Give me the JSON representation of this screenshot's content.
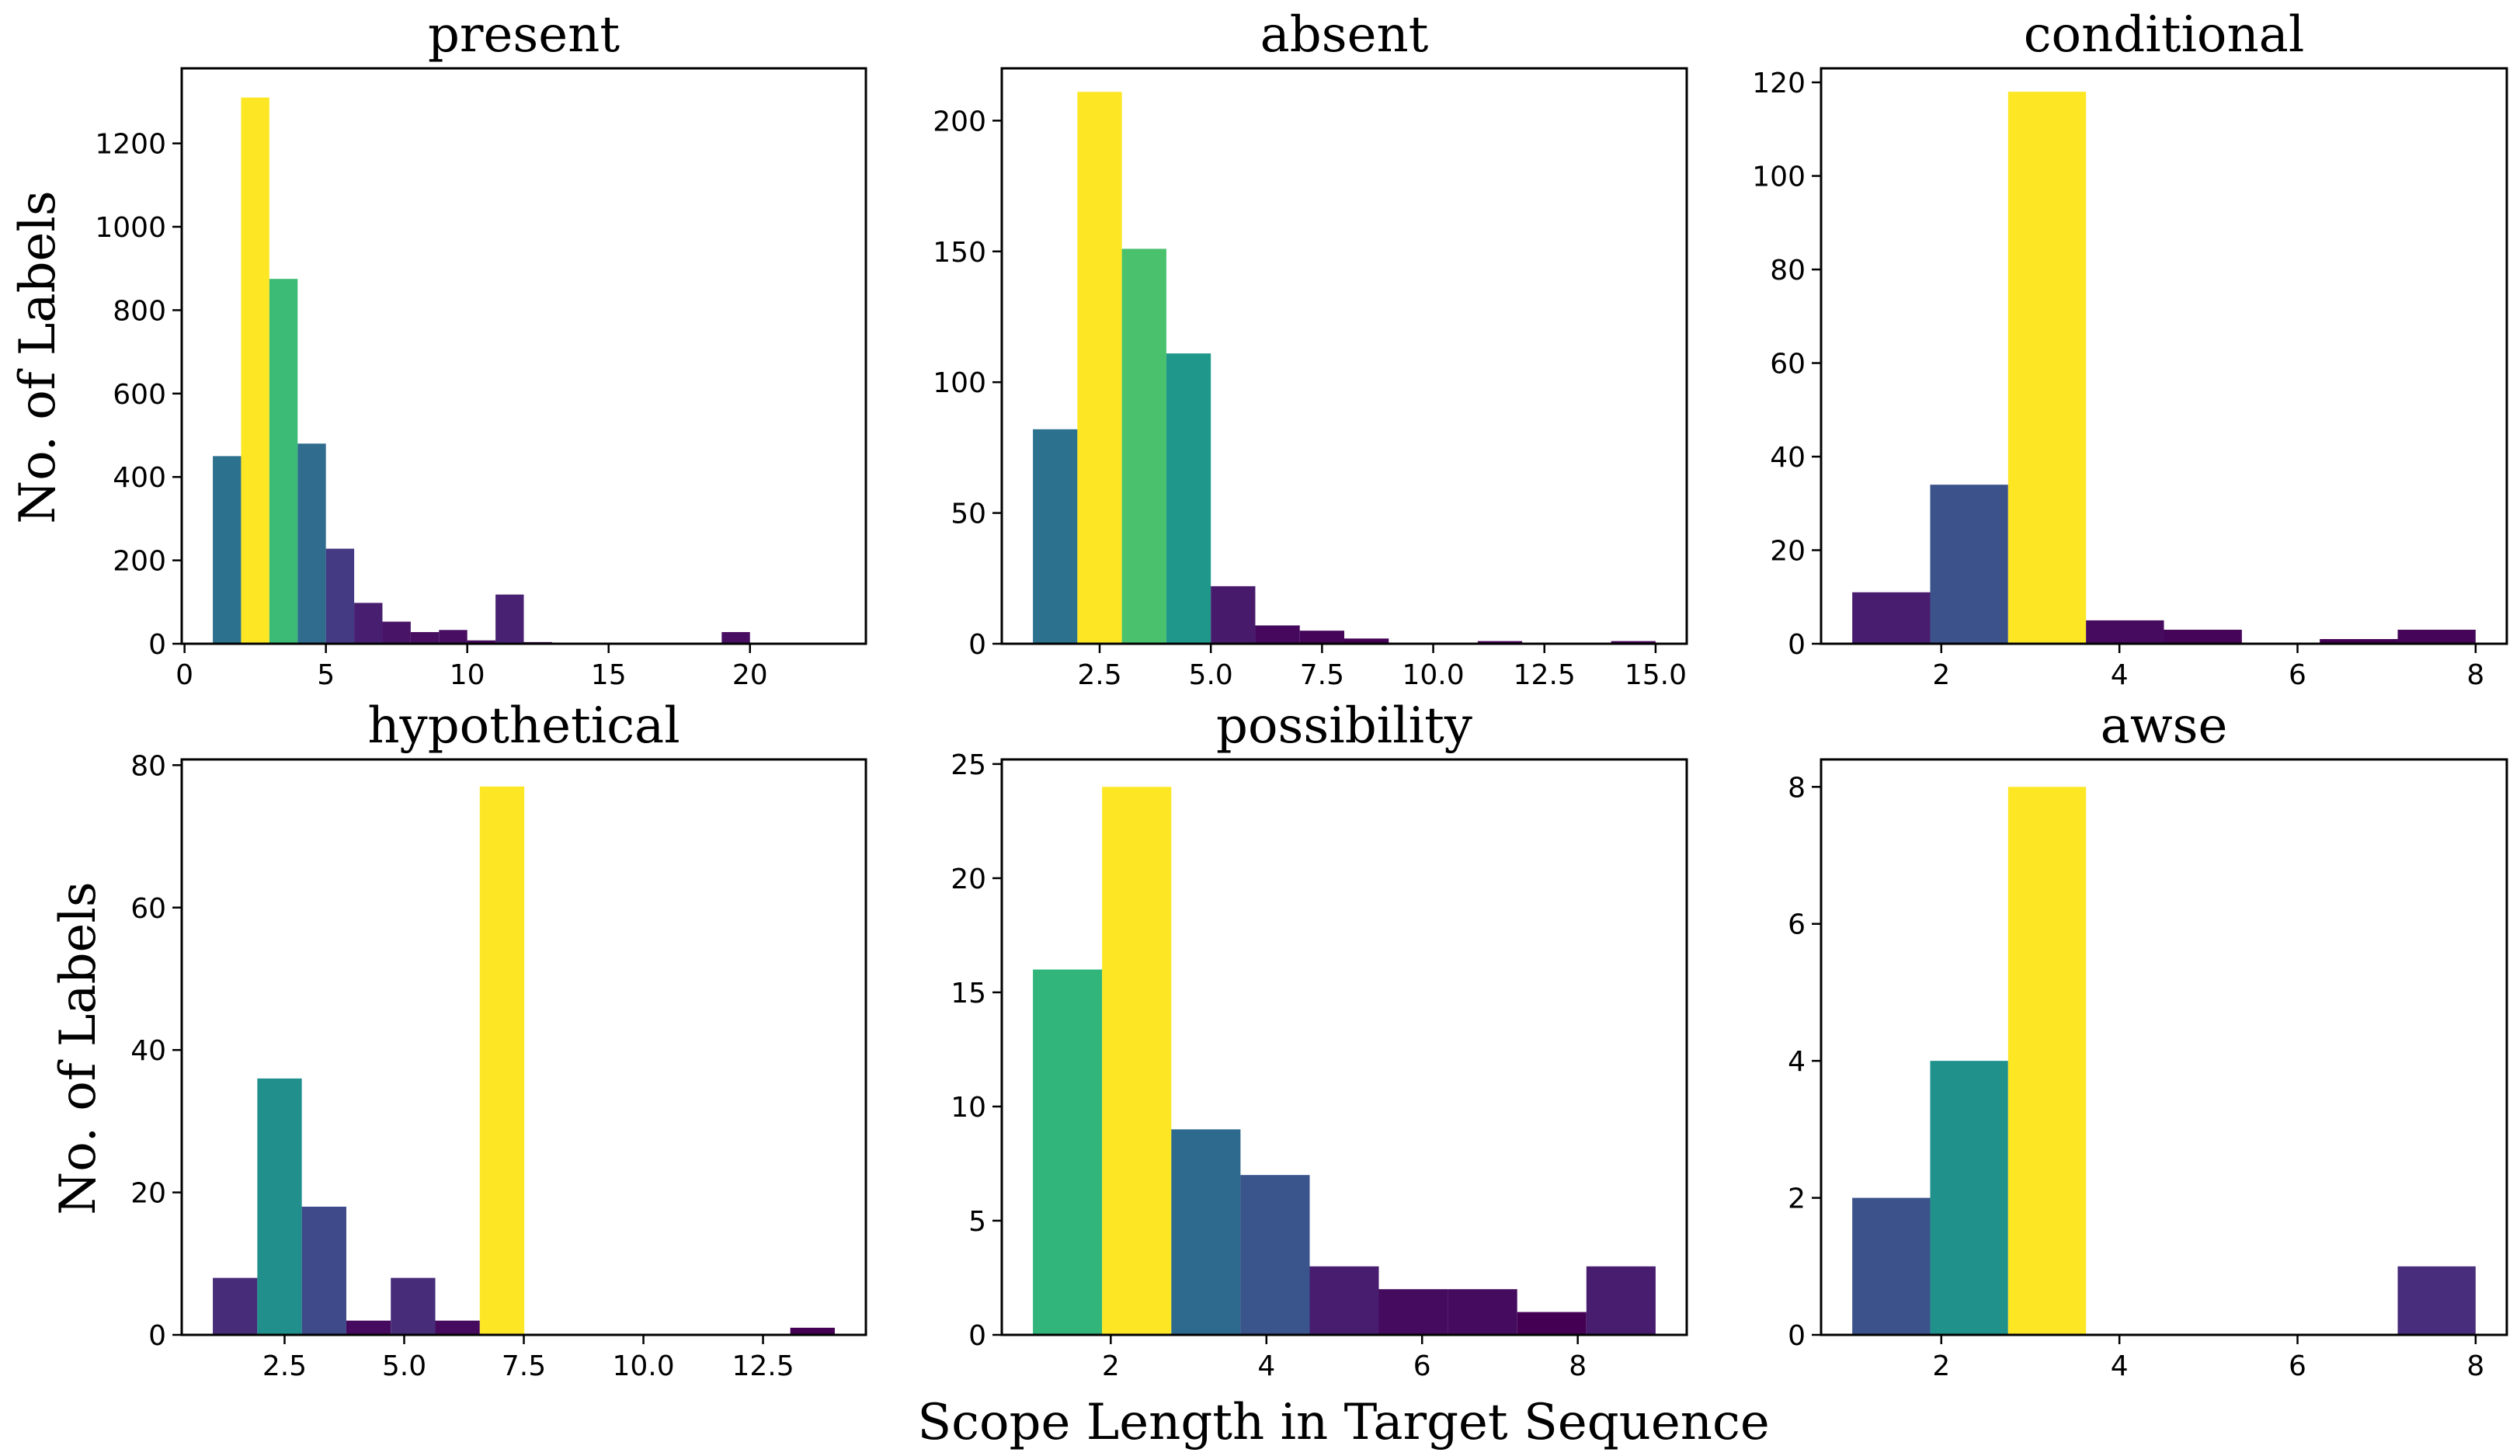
{
  "figure": {
    "ylabel": "No. of Labels",
    "xlabel": "Scope Length in Target Sequence"
  },
  "chart_data": [
    {
      "type": "bar",
      "title": "present",
      "xlim": [
        -0.1,
        24.1
      ],
      "ylim": [
        0,
        1380
      ],
      "xticks": [
        0,
        5,
        10,
        15,
        20
      ],
      "xtick_labels": [
        "0",
        "5",
        "10",
        "15",
        "20"
      ],
      "yticks": [
        0,
        200,
        400,
        600,
        800,
        1000,
        1200
      ],
      "ytick_labels": [
        "0",
        "200",
        "400",
        "600",
        "800",
        "1000",
        "1200"
      ],
      "bars": [
        {
          "x0": 1.0,
          "x1": 2.0,
          "value": 450,
          "color": "#2c728e"
        },
        {
          "x0": 2.0,
          "x1": 3.0,
          "value": 1310,
          "color": "#fde725"
        },
        {
          "x0": 3.0,
          "x1": 4.0,
          "value": 875,
          "color": "#3bbb75"
        },
        {
          "x0": 4.0,
          "x1": 5.0,
          "value": 480,
          "color": "#2f6c8e"
        },
        {
          "x0": 5.0,
          "x1": 6.0,
          "value": 228,
          "color": "#443983"
        },
        {
          "x0": 6.0,
          "x1": 7.0,
          "value": 98,
          "color": "#481f70"
        },
        {
          "x0": 7.0,
          "x1": 8.0,
          "value": 53,
          "color": "#481467"
        },
        {
          "x0": 8.0,
          "x1": 9.0,
          "value": 28,
          "color": "#470e61"
        },
        {
          "x0": 9.0,
          "x1": 10.0,
          "value": 33,
          "color": "#470e61"
        },
        {
          "x0": 10.0,
          "x1": 11.0,
          "value": 8,
          "color": "#46085c"
        },
        {
          "x0": 11.0,
          "x1": 12.0,
          "value": 118,
          "color": "#482173"
        },
        {
          "x0": 12.0,
          "x1": 13.0,
          "value": 4,
          "color": "#450457"
        },
        {
          "x0": 19.0,
          "x1": 20.0,
          "value": 28,
          "color": "#470e61"
        }
      ]
    },
    {
      "type": "bar",
      "title": "absent",
      "xlim": [
        0.3,
        15.7
      ],
      "ylim": [
        0,
        220
      ],
      "xticks": [
        2.5,
        5.0,
        7.5,
        10.0,
        12.5,
        15.0
      ],
      "xtick_labels": [
        "2.5",
        "5.0",
        "7.5",
        "10.0",
        "12.5",
        "15.0"
      ],
      "yticks": [
        0,
        50,
        100,
        150,
        200
      ],
      "ytick_labels": [
        "0",
        "50",
        "100",
        "150",
        "200"
      ],
      "bars": [
        {
          "x0": 1.0,
          "x1": 2.0,
          "value": 82,
          "color": "#2c728e"
        },
        {
          "x0": 2.0,
          "x1": 3.0,
          "value": 211,
          "color": "#fde725"
        },
        {
          "x0": 3.0,
          "x1": 4.0,
          "value": 151,
          "color": "#4ac16d"
        },
        {
          "x0": 4.0,
          "x1": 5.0,
          "value": 111,
          "color": "#1f988b"
        },
        {
          "x0": 5.0,
          "x1": 6.0,
          "value": 22,
          "color": "#481a6c"
        },
        {
          "x0": 6.0,
          "x1": 7.0,
          "value": 7,
          "color": "#46085c"
        },
        {
          "x0": 7.0,
          "x1": 8.0,
          "value": 5,
          "color": "#450559"
        },
        {
          "x0": 8.0,
          "x1": 9.0,
          "value": 2,
          "color": "#440154"
        },
        {
          "x0": 11.0,
          "x1": 12.0,
          "value": 1,
          "color": "#440154"
        },
        {
          "x0": 14.0,
          "x1": 15.0,
          "value": 1,
          "color": "#440154"
        }
      ]
    },
    {
      "type": "bar",
      "title": "conditional",
      "xlim": [
        0.65,
        8.35
      ],
      "ylim": [
        0,
        123
      ],
      "xticks": [
        2,
        4,
        6,
        8
      ],
      "xtick_labels": [
        "2",
        "4",
        "6",
        "8"
      ],
      "yticks": [
        0,
        20,
        40,
        60,
        80,
        100,
        120
      ],
      "ytick_labels": [
        "0",
        "20",
        "40",
        "60",
        "80",
        "100",
        "120"
      ],
      "bars": [
        {
          "x0": 1.0,
          "x1": 1.875,
          "value": 11,
          "color": "#481c6e"
        },
        {
          "x0": 1.875,
          "x1": 2.75,
          "value": 34,
          "color": "#3b528b"
        },
        {
          "x0": 2.75,
          "x1": 3.625,
          "value": 118,
          "color": "#fde725"
        },
        {
          "x0": 3.625,
          "x1": 4.5,
          "value": 5,
          "color": "#460b5e"
        },
        {
          "x0": 4.5,
          "x1": 5.375,
          "value": 3,
          "color": "#450659"
        },
        {
          "x0": 6.25,
          "x1": 7.125,
          "value": 1,
          "color": "#440154"
        },
        {
          "x0": 7.125,
          "x1": 8.0,
          "value": 3,
          "color": "#450659"
        }
      ]
    },
    {
      "type": "bar",
      "title": "hypothetical",
      "xlim": [
        0.35,
        14.65
      ],
      "ylim": [
        0,
        80.8
      ],
      "xticks": [
        2.5,
        5.0,
        7.5,
        10.0,
        12.5
      ],
      "xtick_labels": [
        "2.5",
        "5.0",
        "7.5",
        "10.0",
        "12.5"
      ],
      "yticks": [
        0,
        20,
        40,
        60,
        80
      ],
      "ytick_labels": [
        "0",
        "20",
        "40",
        "60",
        "80"
      ],
      "bars": [
        {
          "x0": 1.0,
          "x1": 1.93,
          "value": 8,
          "color": "#472c7a"
        },
        {
          "x0": 1.93,
          "x1": 2.86,
          "value": 36,
          "color": "#21908d"
        },
        {
          "x0": 2.86,
          "x1": 3.79,
          "value": 18,
          "color": "#3e4a89"
        },
        {
          "x0": 3.79,
          "x1": 4.72,
          "value": 2,
          "color": "#460b5e"
        },
        {
          "x0": 4.72,
          "x1": 5.65,
          "value": 8,
          "color": "#472c7a"
        },
        {
          "x0": 5.65,
          "x1": 6.58,
          "value": 2,
          "color": "#460b5e"
        },
        {
          "x0": 6.58,
          "x1": 7.51,
          "value": 77,
          "color": "#fde725"
        },
        {
          "x0": 13.07,
          "x1": 14.0,
          "value": 1,
          "color": "#440154"
        }
      ]
    },
    {
      "type": "bar",
      "title": "possibility",
      "xlim": [
        0.6,
        9.4
      ],
      "ylim": [
        0,
        25.2
      ],
      "xticks": [
        2,
        4,
        6,
        8
      ],
      "xtick_labels": [
        "2",
        "4",
        "6",
        "8"
      ],
      "yticks": [
        0,
        5,
        10,
        15,
        20,
        25
      ],
      "ytick_labels": [
        "0",
        "5",
        "10",
        "15",
        "20",
        "25"
      ],
      "bars": [
        {
          "x0": 1.0,
          "x1": 1.889,
          "value": 16,
          "color": "#31b57b"
        },
        {
          "x0": 1.889,
          "x1": 2.778,
          "value": 24,
          "color": "#fde725"
        },
        {
          "x0": 2.778,
          "x1": 3.667,
          "value": 9,
          "color": "#2e6a8e"
        },
        {
          "x0": 3.667,
          "x1": 4.556,
          "value": 7,
          "color": "#3a548c"
        },
        {
          "x0": 4.556,
          "x1": 5.444,
          "value": 3,
          "color": "#481d6f"
        },
        {
          "x0": 5.444,
          "x1": 6.333,
          "value": 2,
          "color": "#450b5e"
        },
        {
          "x0": 6.333,
          "x1": 7.222,
          "value": 2,
          "color": "#450b5e"
        },
        {
          "x0": 7.222,
          "x1": 8.111,
          "value": 1,
          "color": "#440154"
        },
        {
          "x0": 8.111,
          "x1": 9.0,
          "value": 3,
          "color": "#481d6f"
        }
      ]
    },
    {
      "type": "bar",
      "title": "awse",
      "xlim": [
        0.65,
        8.35
      ],
      "ylim": [
        0,
        8.4
      ],
      "xticks": [
        2,
        4,
        6,
        8
      ],
      "xtick_labels": [
        "2",
        "4",
        "6",
        "8"
      ],
      "yticks": [
        0,
        2,
        4,
        6,
        8
      ],
      "ytick_labels": [
        "0",
        "2",
        "4",
        "6",
        "8"
      ],
      "bars": [
        {
          "x0": 1.0,
          "x1": 1.875,
          "value": 2,
          "color": "#3b528b"
        },
        {
          "x0": 1.875,
          "x1": 2.75,
          "value": 4,
          "color": "#21918c"
        },
        {
          "x0": 2.75,
          "x1": 3.625,
          "value": 8,
          "color": "#fde725"
        },
        {
          "x0": 7.125,
          "x1": 8.0,
          "value": 1,
          "color": "#472d7b"
        }
      ]
    }
  ]
}
